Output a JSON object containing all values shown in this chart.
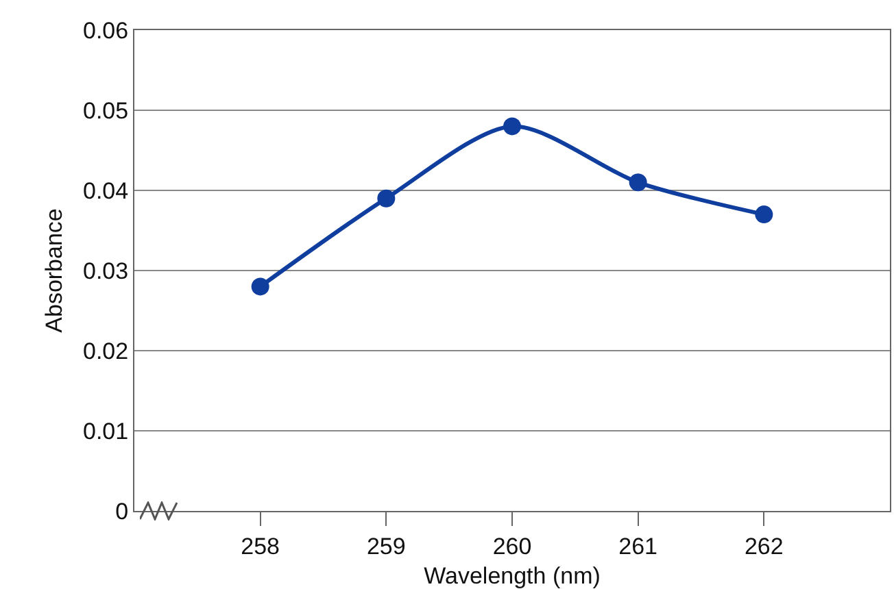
{
  "chart_data": {
    "type": "line",
    "xlabel": "Wavelength (nm)",
    "ylabel": "Absorbance",
    "x": [
      258,
      259,
      260,
      261,
      262
    ],
    "series": [
      {
        "color": "#0f3e9e",
        "values": [
          0.028,
          0.039,
          0.048,
          0.041,
          0.037
        ]
      }
    ],
    "xlim": [
      257,
      263
    ],
    "xticks": [
      258,
      259,
      260,
      261,
      262
    ],
    "ylim": [
      0,
      0.06
    ],
    "yticks": [
      {
        "value": 0,
        "label": "0"
      },
      0.01,
      0.02,
      0.03,
      0.04,
      0.05,
      0.06
    ],
    "grid": "y",
    "marker": "circle",
    "line_style": "solid"
  }
}
